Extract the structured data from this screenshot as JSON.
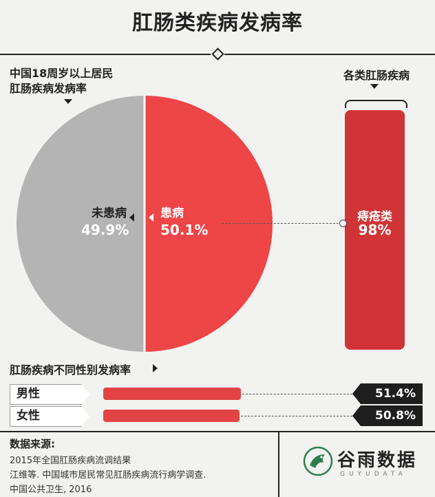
{
  "title": "肛肠类疾病发病率",
  "pie_section": {
    "heading_line1": "中国18周岁以上居民",
    "heading_line2": "肛肠疾病发病率"
  },
  "column_section": {
    "heading": "各类肛肠疾病"
  },
  "gender_section": {
    "heading": "肛肠疾病不同性别发病率"
  },
  "chart_data": [
    {
      "type": "pie",
      "title": "中国18周岁以上居民肛肠疾病发病率",
      "slices": [
        {
          "label": "患病",
          "value": 50.1,
          "value_label": "50.1%",
          "color": "#ee4547"
        },
        {
          "label": "未患病",
          "value": 49.9,
          "value_label": "49.9%",
          "color": "#b4b4b4"
        }
      ]
    },
    {
      "type": "bar",
      "title": "各类肛肠疾病",
      "categories": [
        "痔疮类"
      ],
      "values": [
        98
      ],
      "value_labels": [
        "98%"
      ],
      "color": "#d03436"
    },
    {
      "type": "bar",
      "title": "肛肠疾病不同性别发病率",
      "categories": [
        "男性",
        "女性"
      ],
      "values": [
        51.4,
        50.8
      ],
      "value_labels": [
        "51.4%",
        "50.8%"
      ],
      "color": "#e24446"
    }
  ],
  "source": {
    "heading": "数据来源:",
    "lines": [
      "2015年全国肛肠疾病流调结果",
      "江维等. 中国城市居民常见肛肠疾病流行病学调查.",
      "中国公共卫生, 2016"
    ]
  },
  "logo": {
    "name": "谷雨数据",
    "sub": "GUYUDATA",
    "icon": "guyu-bird-logo"
  }
}
